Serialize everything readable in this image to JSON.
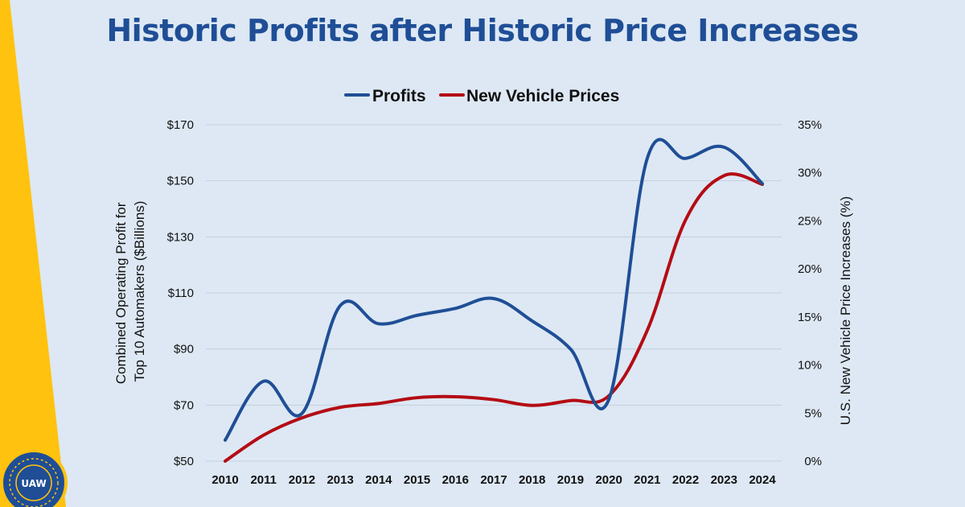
{
  "slide": {
    "title": "Historic Profits after Historic Price Increases",
    "colors": {
      "background": "#dde8f4",
      "title": "#1f4e96",
      "accent_stripe": "#ffc20e",
      "logo_blue": "#1f4e96"
    },
    "logo": {
      "text": "UAW",
      "icon": "uaw-seal-icon"
    }
  },
  "chart_data": {
    "type": "line",
    "title": "",
    "x": [
      2010,
      2011,
      2012,
      2013,
      2014,
      2015,
      2016,
      2017,
      2018,
      2019,
      2020,
      2021,
      2022,
      2023,
      2024
    ],
    "x_tick_labels": [
      "2010",
      "2011",
      "2012",
      "2013",
      "2014",
      "2015",
      "2016",
      "2017",
      "2018",
      "2019",
      "2020",
      "2021",
      "2022",
      "2023",
      "2024"
    ],
    "ylabel_left": "Combined Operating Profit for Top 10 Automakers ($Billions)",
    "ylabel_left_lines": [
      "Combined Operating Profit for",
      "Top 10 Automakers ($Billions)"
    ],
    "ylabel_right": "U.S. New Vehicle Price Increases (%)",
    "ylim_left": [
      50,
      170
    ],
    "ylim_right": [
      0,
      35
    ],
    "y_left_ticks": [
      50,
      70,
      90,
      110,
      130,
      150,
      170
    ],
    "y_left_tick_labels": [
      "$50",
      "$70",
      "$90",
      "$110",
      "$130",
      "$150",
      "$170"
    ],
    "y_right_ticks": [
      0,
      5,
      10,
      15,
      20,
      25,
      30,
      35
    ],
    "y_right_tick_labels": [
      "0%",
      "5%",
      "10%",
      "15%",
      "20%",
      "25%",
      "30%",
      "35%"
    ],
    "grid": "horizontal",
    "legend_placement": "top-center",
    "series": [
      {
        "name": "Profits",
        "axis": "left",
        "color": "#1f4e96",
        "values": [
          57.5,
          78.5,
          67,
          105.5,
          99,
          102,
          104.5,
          108,
          100,
          90,
          72,
          158,
          158,
          162,
          149
        ]
      },
      {
        "name": "New Vehicle Prices",
        "axis": "right",
        "color": "#b40c14",
        "values": [
          0,
          2.7,
          4.5,
          5.6,
          6.0,
          6.6,
          6.7,
          6.4,
          5.8,
          6.3,
          6.8,
          13.6,
          25.1,
          29.7,
          28.8
        ]
      }
    ]
  }
}
